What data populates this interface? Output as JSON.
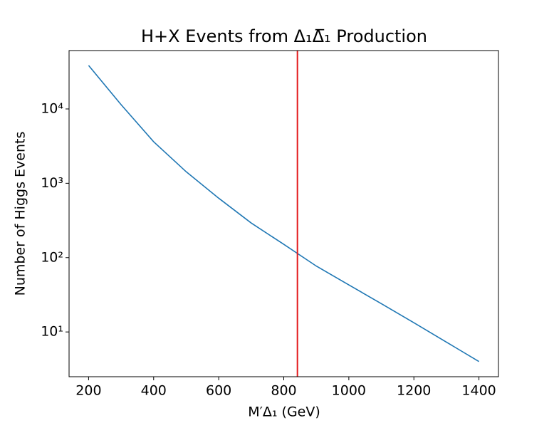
{
  "chart_data": {
    "type": "line",
    "title": "H+X Events from Δ₁Δ̅₁ Production",
    "xlabel": "M′Δ₁ (GeV)",
    "ylabel": "Number of Higgs Events",
    "x": [
      200,
      300,
      400,
      500,
      600,
      700,
      800,
      900,
      1000,
      1100,
      1200,
      1300,
      1400
    ],
    "series": [
      {
        "color": "#1f77b4",
        "values": [
          38500,
          11400,
          3620,
          1430,
          630,
          292,
          151,
          77,
          43,
          24,
          13.3,
          7.3,
          4.0
        ]
      }
    ],
    "vline": {
      "x": 842,
      "color": "#e41a1c"
    },
    "xlim": [
      140,
      1460
    ],
    "xticks": [
      200,
      400,
      600,
      800,
      1000,
      1200,
      1400
    ],
    "ylim": [
      2.5,
      61000
    ],
    "ylog": true,
    "yticks": [
      {
        "value": 10,
        "label": "10¹"
      },
      {
        "value": 100,
        "label": "10²"
      },
      {
        "value": 1000,
        "label": "10³"
      },
      {
        "value": 10000,
        "label": "10⁴"
      }
    ]
  }
}
